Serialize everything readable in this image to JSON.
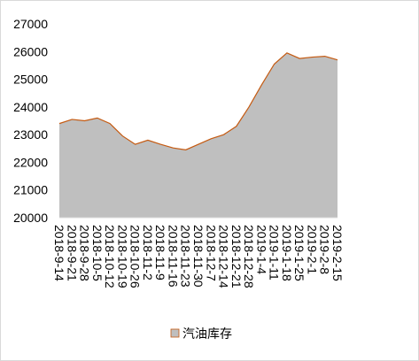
{
  "chart_data": {
    "type": "area",
    "categories": [
      "2018-9-14",
      "2018-9-21",
      "2018-9-28",
      "2018-10-5",
      "2018-10-12",
      "2018-10-19",
      "2018-10-26",
      "2018-11-2",
      "2018-11-9",
      "2018-11-16",
      "2018-11-23",
      "2018-11-30",
      "2018-12-7",
      "2018-12-14",
      "2018-12-21",
      "2018-12-28",
      "2019-1-4",
      "2019-1-11",
      "2019-1-18",
      "2019-1-25",
      "2019-2-1",
      "2019-2-8",
      "2019-2-15"
    ],
    "series": [
      {
        "name": "汽油库存",
        "color": "#bfbfbf",
        "stroke": "#c55a11",
        "values": [
          23400,
          23550,
          23500,
          23600,
          23400,
          22950,
          22650,
          22800,
          22650,
          22520,
          22450,
          22650,
          22850,
          23000,
          23300,
          24000,
          24800,
          25550,
          25950,
          25750,
          25800,
          25830,
          25700
        ]
      }
    ],
    "ylim": [
      20000,
      27000
    ],
    "yticks": [
      20000,
      21000,
      22000,
      23000,
      24000,
      25000,
      26000,
      27000
    ],
    "legend": "bottom"
  }
}
